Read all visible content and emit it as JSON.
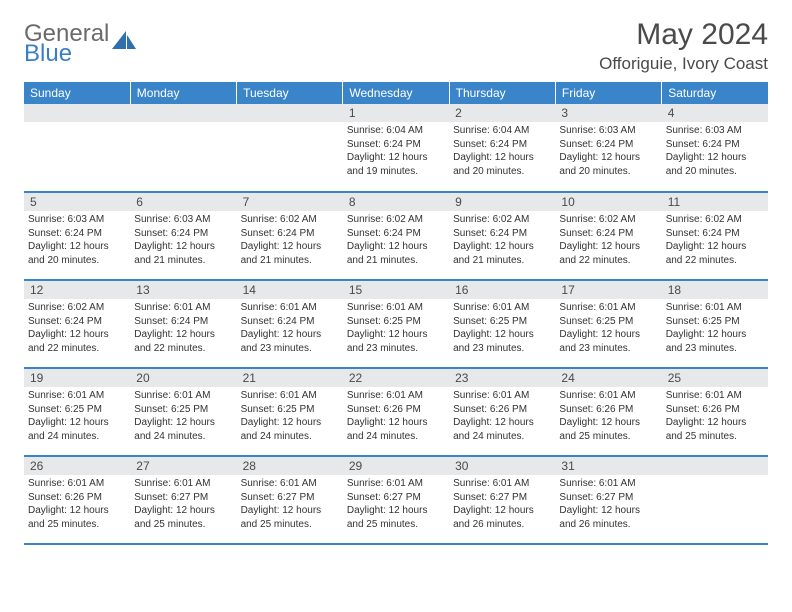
{
  "brand": {
    "part1": "General",
    "part2": "Blue"
  },
  "title": "May 2024",
  "location": "Offoriguie, Ivory Coast",
  "colors": {
    "header_bg": "#3a85c9",
    "header_fg": "#ffffff",
    "daynum_bg": "#e7e8e9",
    "text": "#333333",
    "border": "#3a85c9",
    "logo_blue": "#3a7fc4",
    "logo_gray": "#6a6a6a"
  },
  "daysOfWeek": [
    "Sunday",
    "Monday",
    "Tuesday",
    "Wednesday",
    "Thursday",
    "Friday",
    "Saturday"
  ],
  "weeks": [
    [
      null,
      null,
      null,
      {
        "n": "1",
        "sr": "6:04 AM",
        "ss": "6:24 PM",
        "dl": "12 hours and 19 minutes."
      },
      {
        "n": "2",
        "sr": "6:04 AM",
        "ss": "6:24 PM",
        "dl": "12 hours and 20 minutes."
      },
      {
        "n": "3",
        "sr": "6:03 AM",
        "ss": "6:24 PM",
        "dl": "12 hours and 20 minutes."
      },
      {
        "n": "4",
        "sr": "6:03 AM",
        "ss": "6:24 PM",
        "dl": "12 hours and 20 minutes."
      }
    ],
    [
      {
        "n": "5",
        "sr": "6:03 AM",
        "ss": "6:24 PM",
        "dl": "12 hours and 20 minutes."
      },
      {
        "n": "6",
        "sr": "6:03 AM",
        "ss": "6:24 PM",
        "dl": "12 hours and 21 minutes."
      },
      {
        "n": "7",
        "sr": "6:02 AM",
        "ss": "6:24 PM",
        "dl": "12 hours and 21 minutes."
      },
      {
        "n": "8",
        "sr": "6:02 AM",
        "ss": "6:24 PM",
        "dl": "12 hours and 21 minutes."
      },
      {
        "n": "9",
        "sr": "6:02 AM",
        "ss": "6:24 PM",
        "dl": "12 hours and 21 minutes."
      },
      {
        "n": "10",
        "sr": "6:02 AM",
        "ss": "6:24 PM",
        "dl": "12 hours and 22 minutes."
      },
      {
        "n": "11",
        "sr": "6:02 AM",
        "ss": "6:24 PM",
        "dl": "12 hours and 22 minutes."
      }
    ],
    [
      {
        "n": "12",
        "sr": "6:02 AM",
        "ss": "6:24 PM",
        "dl": "12 hours and 22 minutes."
      },
      {
        "n": "13",
        "sr": "6:01 AM",
        "ss": "6:24 PM",
        "dl": "12 hours and 22 minutes."
      },
      {
        "n": "14",
        "sr": "6:01 AM",
        "ss": "6:24 PM",
        "dl": "12 hours and 23 minutes."
      },
      {
        "n": "15",
        "sr": "6:01 AM",
        "ss": "6:25 PM",
        "dl": "12 hours and 23 minutes."
      },
      {
        "n": "16",
        "sr": "6:01 AM",
        "ss": "6:25 PM",
        "dl": "12 hours and 23 minutes."
      },
      {
        "n": "17",
        "sr": "6:01 AM",
        "ss": "6:25 PM",
        "dl": "12 hours and 23 minutes."
      },
      {
        "n": "18",
        "sr": "6:01 AM",
        "ss": "6:25 PM",
        "dl": "12 hours and 23 minutes."
      }
    ],
    [
      {
        "n": "19",
        "sr": "6:01 AM",
        "ss": "6:25 PM",
        "dl": "12 hours and 24 minutes."
      },
      {
        "n": "20",
        "sr": "6:01 AM",
        "ss": "6:25 PM",
        "dl": "12 hours and 24 minutes."
      },
      {
        "n": "21",
        "sr": "6:01 AM",
        "ss": "6:25 PM",
        "dl": "12 hours and 24 minutes."
      },
      {
        "n": "22",
        "sr": "6:01 AM",
        "ss": "6:26 PM",
        "dl": "12 hours and 24 minutes."
      },
      {
        "n": "23",
        "sr": "6:01 AM",
        "ss": "6:26 PM",
        "dl": "12 hours and 24 minutes."
      },
      {
        "n": "24",
        "sr": "6:01 AM",
        "ss": "6:26 PM",
        "dl": "12 hours and 25 minutes."
      },
      {
        "n": "25",
        "sr": "6:01 AM",
        "ss": "6:26 PM",
        "dl": "12 hours and 25 minutes."
      }
    ],
    [
      {
        "n": "26",
        "sr": "6:01 AM",
        "ss": "6:26 PM",
        "dl": "12 hours and 25 minutes."
      },
      {
        "n": "27",
        "sr": "6:01 AM",
        "ss": "6:27 PM",
        "dl": "12 hours and 25 minutes."
      },
      {
        "n": "28",
        "sr": "6:01 AM",
        "ss": "6:27 PM",
        "dl": "12 hours and 25 minutes."
      },
      {
        "n": "29",
        "sr": "6:01 AM",
        "ss": "6:27 PM",
        "dl": "12 hours and 25 minutes."
      },
      {
        "n": "30",
        "sr": "6:01 AM",
        "ss": "6:27 PM",
        "dl": "12 hours and 26 minutes."
      },
      {
        "n": "31",
        "sr": "6:01 AM",
        "ss": "6:27 PM",
        "dl": "12 hours and 26 minutes."
      },
      null
    ]
  ],
  "labels": {
    "sunrise": "Sunrise:",
    "sunset": "Sunset:",
    "daylight": "Daylight:"
  }
}
